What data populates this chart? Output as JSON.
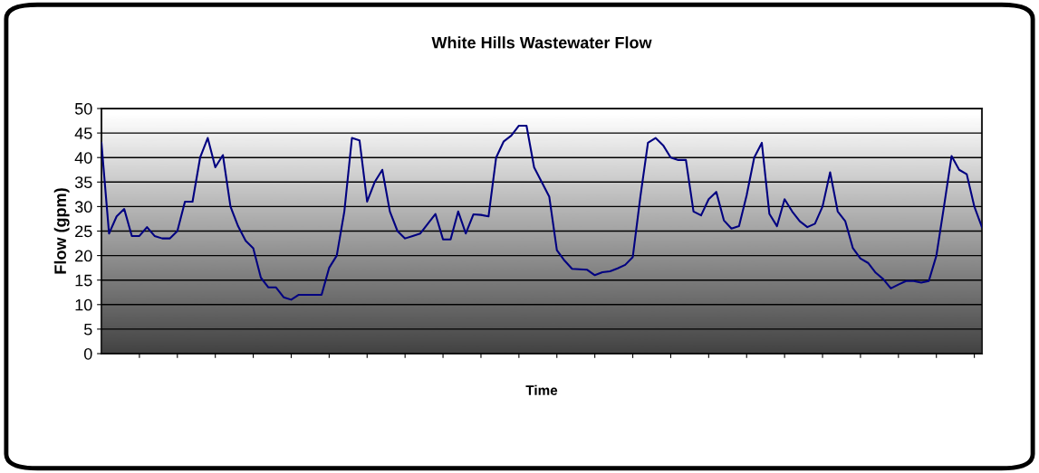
{
  "chart_data": {
    "type": "line",
    "title": "White Hills Wastewater Flow",
    "xlabel": "Time",
    "ylabel": "Flow (gpm)",
    "categories": [
      null,
      null,
      null,
      null,
      null,
      null,
      null,
      null,
      null,
      null,
      null,
      null,
      null,
      null,
      null,
      null,
      null,
      null,
      null,
      null,
      null,
      null,
      null,
      null,
      null,
      null,
      null,
      null,
      null,
      null,
      null,
      null,
      null,
      null,
      null,
      null,
      null,
      null,
      null,
      null,
      null,
      null,
      null,
      null,
      null,
      null,
      null,
      null,
      null,
      null,
      null,
      null,
      null,
      null,
      null,
      null,
      null,
      null,
      null,
      null,
      null,
      null,
      null,
      null,
      null,
      null,
      null,
      null,
      null,
      null,
      null,
      null,
      null,
      null,
      null,
      null,
      null,
      null,
      null,
      null,
      null,
      null,
      null,
      null,
      null,
      null,
      null,
      null,
      null,
      null,
      null,
      null,
      null,
      null,
      null,
      null,
      null,
      null,
      null,
      null,
      null,
      null,
      null,
      null,
      null,
      null,
      null,
      null,
      null,
      null,
      null,
      null,
      null,
      null,
      null,
      null,
      null
    ],
    "series": [
      {
        "color": "#000080",
        "values": [
          43,
          24.5,
          28,
          29.5,
          24,
          24,
          25.8,
          24,
          23.5,
          23.5,
          25,
          31,
          31,
          40,
          44,
          38,
          40.5,
          30,
          26,
          23,
          21.5,
          15.5,
          13.5,
          13.5,
          11.5,
          11,
          12,
          12,
          12,
          12,
          17.5,
          20,
          29,
          44,
          43.5,
          31,
          35,
          37.5,
          29,
          25,
          23.5,
          24,
          24.5,
          26.5,
          28.5,
          23.3,
          23.3,
          29,
          24.5,
          28.4,
          28.3,
          28,
          40,
          43.3,
          44.5,
          46.5,
          46.5,
          38,
          35,
          32,
          21.1,
          19,
          17.3,
          17.2,
          17.1,
          16,
          16.6,
          16.8,
          17.4,
          18.1,
          19.7,
          32,
          43,
          44,
          42.5,
          40,
          39.5,
          39.5,
          29,
          28.2,
          31.5,
          33,
          27.2,
          25.5,
          26,
          32.3,
          40,
          43,
          28.5,
          26,
          31.5,
          29,
          27,
          25.8,
          26.5,
          30,
          37,
          29,
          27,
          21.5,
          19.4,
          18.5,
          16.5,
          15.2,
          13.3,
          14.1,
          14.8,
          14.8,
          14.5,
          14.8,
          20,
          30,
          40.3,
          37.5,
          36.6,
          30,
          25.8
        ]
      }
    ],
    "ylim": [
      0,
      50
    ],
    "yticks": [
      0,
      5,
      10,
      15,
      20,
      25,
      30,
      35,
      40,
      45,
      50
    ],
    "grid": "y",
    "tick_labels": "y",
    "marker": "none",
    "line_style": "solid"
  }
}
